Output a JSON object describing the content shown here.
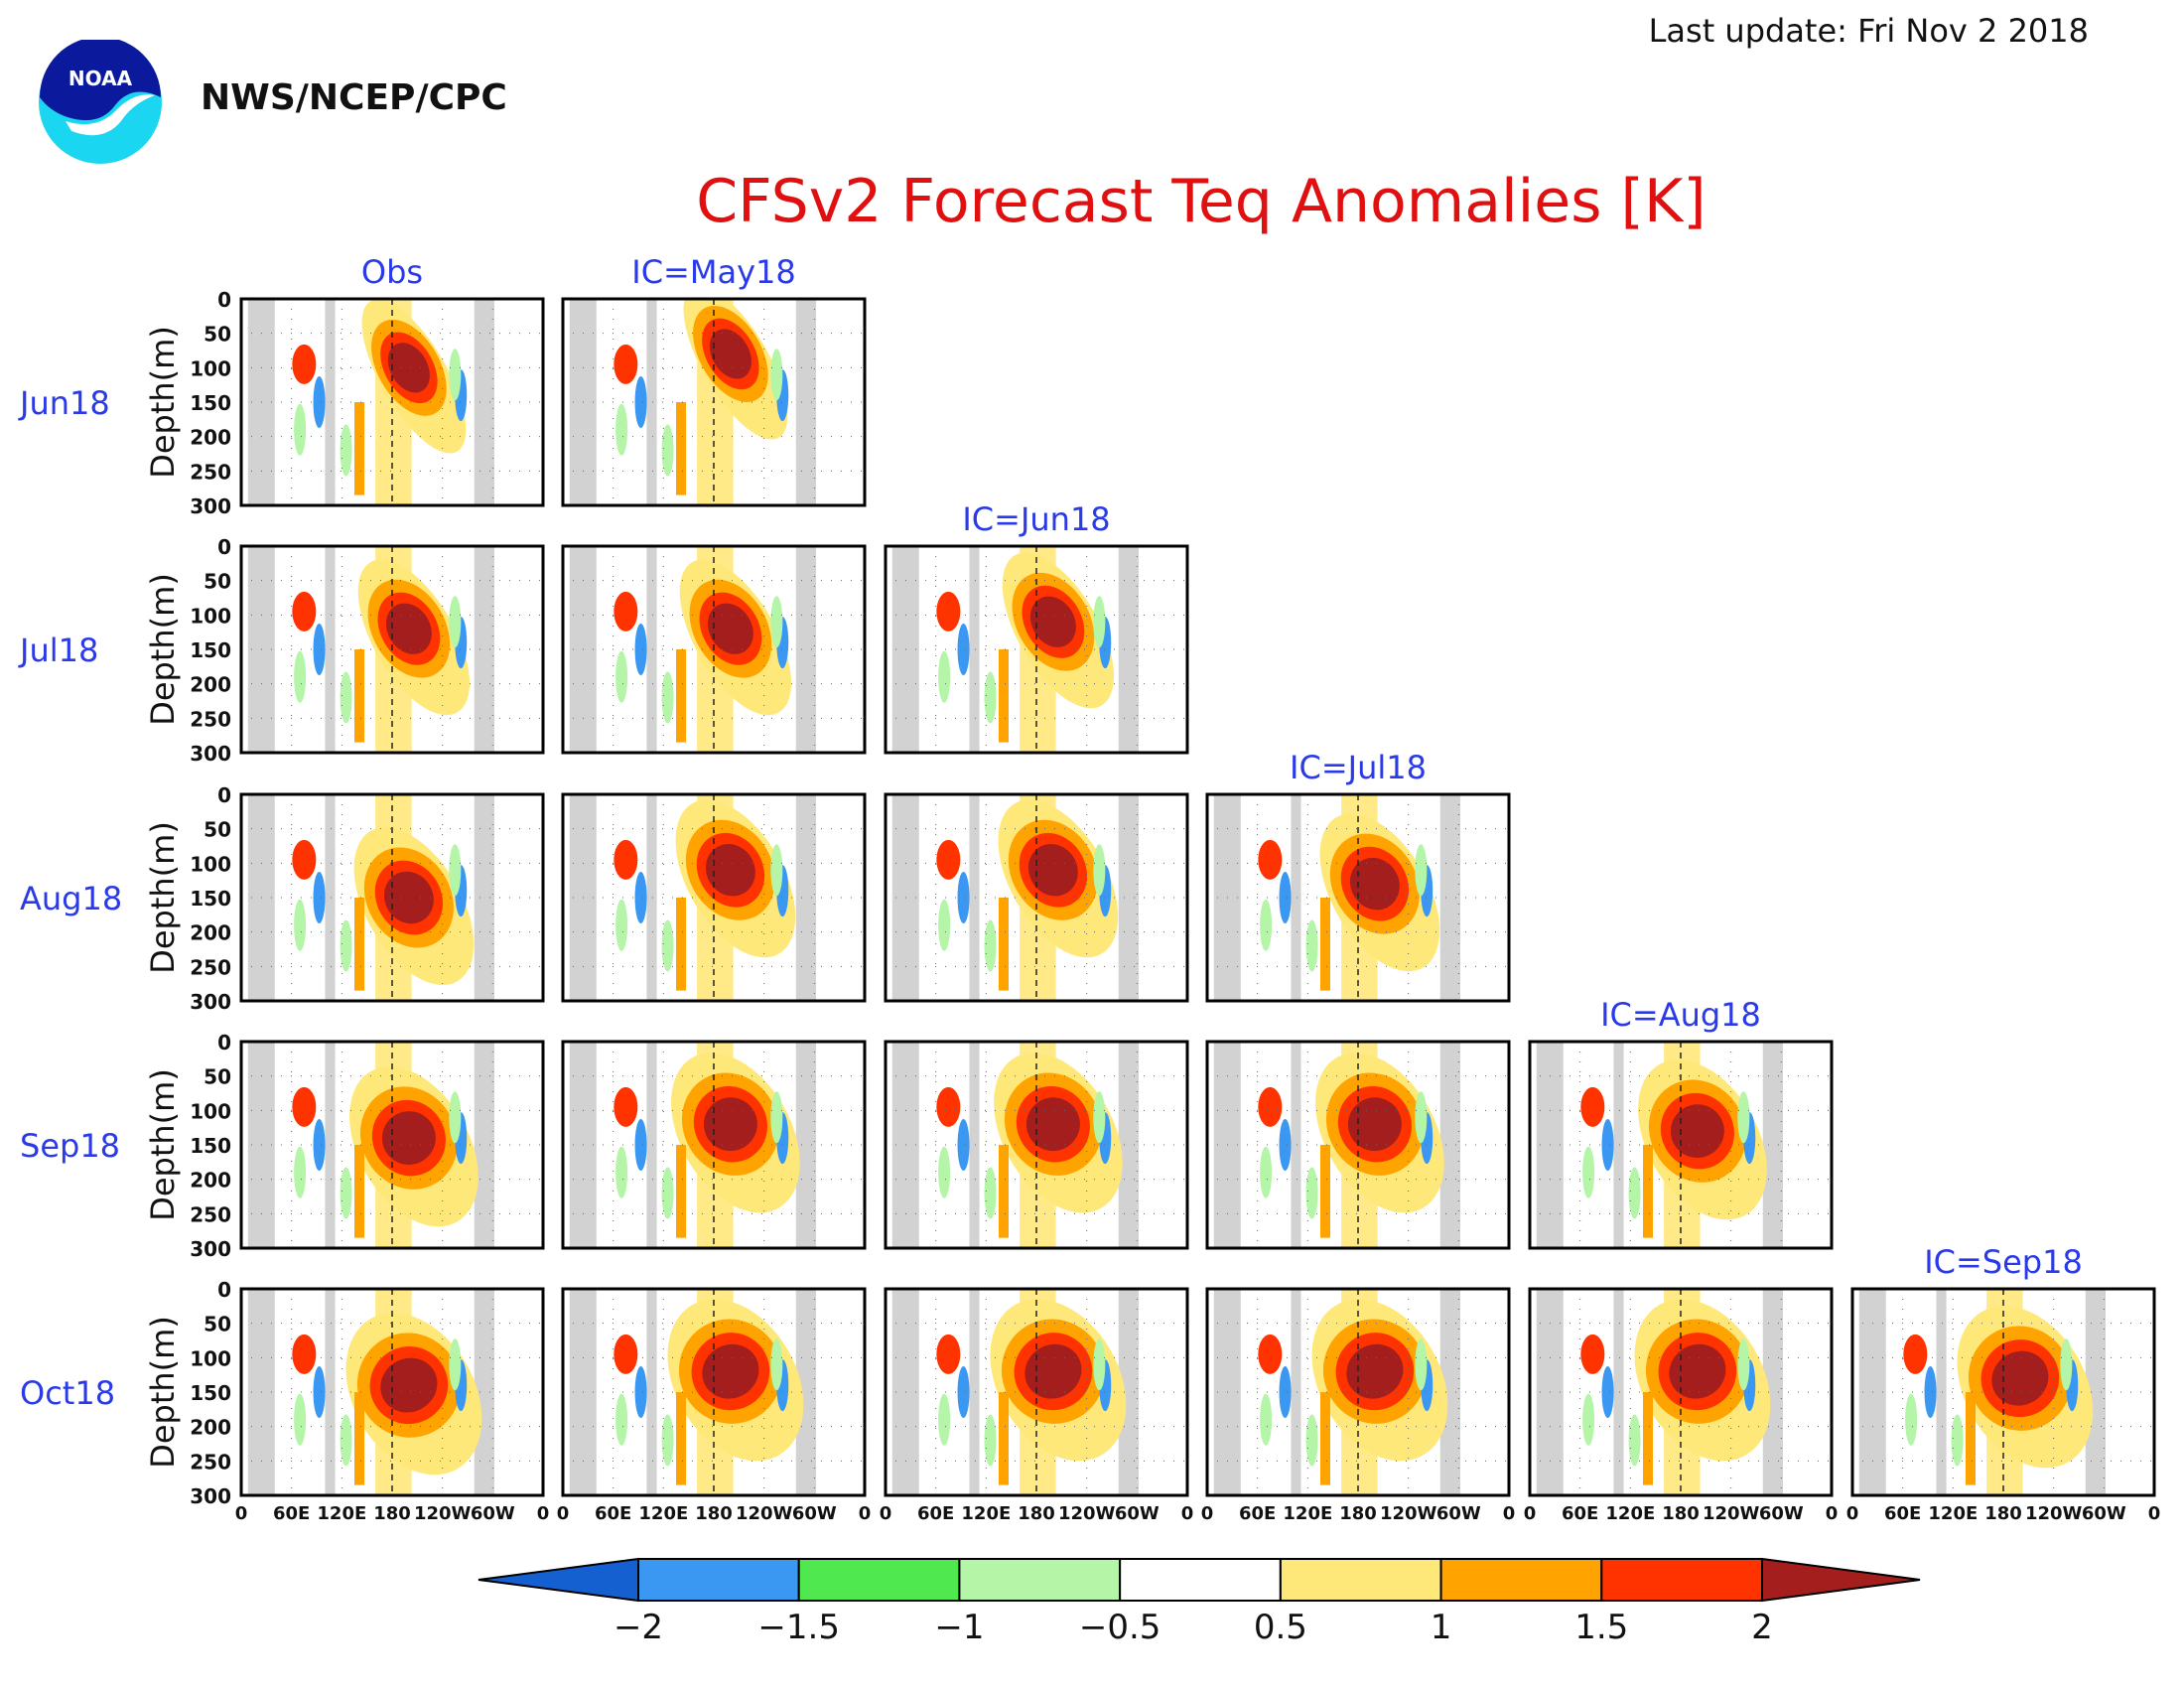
{
  "header": {
    "logo_text": "NOAA",
    "agency": "NWS/NCEP/CPC",
    "last_update": "Last update: Fri Nov 2 2018",
    "title": "CFSv2 Forecast Teq Anomalies [K]"
  },
  "chart_data": {
    "type": "heatmap",
    "title": "CFSv2 Forecast Teq Anomalies [K]",
    "ylabel": "Depth(m)",
    "ylim": [
      300,
      0
    ],
    "y_ticks": [
      "0",
      "50",
      "100",
      "150",
      "200",
      "250",
      "300"
    ],
    "x_ticks": [
      "0",
      "60E",
      "120E",
      "180",
      "120W",
      "60W",
      "0"
    ],
    "x_range": [
      "0",
      "0"
    ],
    "row_labels": [
      "Jun18",
      "Jul18",
      "Aug18",
      "Sep18",
      "Oct18"
    ],
    "column_labels": [
      "Obs",
      "IC=May18",
      "IC=Jun18",
      "IC=Jul18",
      "IC=Aug18",
      "IC=Sep18"
    ],
    "grid": true,
    "colorbar": {
      "ticks": [
        "−2",
        "−1.5",
        "−1",
        "−0.5",
        "0.5",
        "1",
        "1.5",
        "2"
      ],
      "levels": [
        -2,
        -1.5,
        -1,
        -0.5,
        0.5,
        1,
        1.5,
        2
      ],
      "colors": [
        "#1560d0",
        "#3a98f2",
        "#4fe84f",
        "#b4f5a8",
        "#ffffff",
        "#ffe87a",
        "#ffa300",
        "#ff3300",
        "#a51e1e"
      ],
      "extend": "both"
    },
    "land_color": "#d2d2d2",
    "panels": [
      {
        "row": "Jun18",
        "column": "Obs",
        "peak_anomaly": 2,
        "peak_depth_m": 100
      },
      {
        "row": "Jun18",
        "column": "IC=May18",
        "peak_anomaly": 2,
        "peak_depth_m": 80
      },
      {
        "row": "Jul18",
        "column": "Obs",
        "peak_anomaly": 2,
        "peak_depth_m": 120
      },
      {
        "row": "Jul18",
        "column": "IC=May18",
        "peak_anomaly": 2,
        "peak_depth_m": 120
      },
      {
        "row": "Jul18",
        "column": "IC=Jun18",
        "peak_anomaly": 2,
        "peak_depth_m": 110
      },
      {
        "row": "Aug18",
        "column": "Obs",
        "peak_anomaly": 2,
        "peak_depth_m": 150
      },
      {
        "row": "Aug18",
        "column": "IC=May18",
        "peak_anomaly": 2,
        "peak_depth_m": 110
      },
      {
        "row": "Aug18",
        "column": "IC=Jun18",
        "peak_anomaly": 2,
        "peak_depth_m": 110
      },
      {
        "row": "Aug18",
        "column": "IC=Jul18",
        "peak_anomaly": 2,
        "peak_depth_m": 130
      },
      {
        "row": "Sep18",
        "column": "Obs",
        "peak_anomaly": 2,
        "peak_depth_m": 140
      },
      {
        "row": "Sep18",
        "column": "IC=May18",
        "peak_anomaly": 2,
        "peak_depth_m": 120
      },
      {
        "row": "Sep18",
        "column": "IC=Jun18",
        "peak_anomaly": 2,
        "peak_depth_m": 120
      },
      {
        "row": "Sep18",
        "column": "IC=Jul18",
        "peak_anomaly": 2,
        "peak_depth_m": 120
      },
      {
        "row": "Sep18",
        "column": "IC=Aug18",
        "peak_anomaly": 2,
        "peak_depth_m": 130
      },
      {
        "row": "Oct18",
        "column": "Obs",
        "peak_anomaly": 2,
        "peak_depth_m": 140
      },
      {
        "row": "Oct18",
        "column": "IC=May18",
        "peak_anomaly": 2,
        "peak_depth_m": 120
      },
      {
        "row": "Oct18",
        "column": "IC=Jun18",
        "peak_anomaly": 2,
        "peak_depth_m": 120
      },
      {
        "row": "Oct18",
        "column": "IC=Jul18",
        "peak_anomaly": 2,
        "peak_depth_m": 120
      },
      {
        "row": "Oct18",
        "column": "IC=Aug18",
        "peak_anomaly": 2,
        "peak_depth_m": 120
      },
      {
        "row": "Oct18",
        "column": "IC=Sep18",
        "peak_anomaly": 2,
        "peak_depth_m": 130
      }
    ]
  }
}
